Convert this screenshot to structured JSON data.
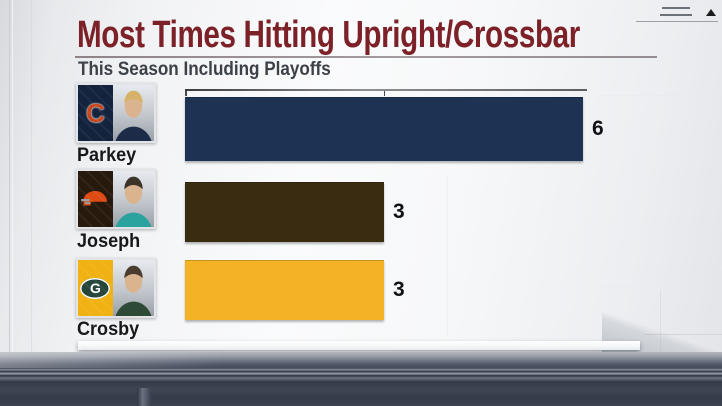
{
  "header": {
    "title": "Most Times Hitting Upright/Crossbar",
    "subtitle": "This Season Including Playoffs"
  },
  "chart_data": {
    "type": "bar",
    "orientation": "horizontal",
    "title": "Most Times Hitting Upright/Crossbar",
    "subtitle": "This Season Including Playoffs",
    "categories": [
      "Parkey",
      "Joseph",
      "Crosby"
    ],
    "values": [
      6,
      3,
      3
    ],
    "xlim": [
      0,
      6
    ],
    "grid": false,
    "legend": false,
    "axis_ticks": "top axis line above first bar with ticks at 0 and midpoint",
    "bar_colors": [
      "#1e3253",
      "#3a2c11",
      "#f4b227"
    ]
  },
  "rows": [
    {
      "name": "Parkey",
      "value": "6",
      "team": "Chicago Bears",
      "bar_color": "#1e3253",
      "logo_type": "letter",
      "logo_letter": "C",
      "logo_bg": "#13233e",
      "logo_fg": "#c8451a",
      "jersey_color": "#1c2b47",
      "hair_color": "#d6b267"
    },
    {
      "name": "Joseph",
      "value": "3",
      "team": "Cleveland Browns",
      "bar_color": "#3a2c11",
      "logo_type": "helmet",
      "logo_letter": "",
      "logo_bg": "#271a0d",
      "logo_fg": "#dd4a12",
      "jersey_color": "#2aa39e",
      "hair_color": "#3d3328"
    },
    {
      "name": "Crosby",
      "value": "3",
      "team": "Green Bay Packers",
      "bar_color": "#f4b227",
      "logo_type": "oval-letter",
      "logo_letter": "G",
      "logo_bg": "#f0b112",
      "logo_fg": "#ffffff",
      "badge_color": "#26463a",
      "jersey_color": "#2c4a36",
      "hair_color": "#4a3d30"
    }
  ],
  "decor": {
    "icons": [
      "menu-lines-icon",
      "triangle-up-icon"
    ],
    "colors": {
      "title": "#7c2127",
      "subtitle": "#3c4148",
      "value_label": "#111215",
      "floor_dark": "#343b49",
      "backdrop_light": "#fafbfc"
    }
  }
}
